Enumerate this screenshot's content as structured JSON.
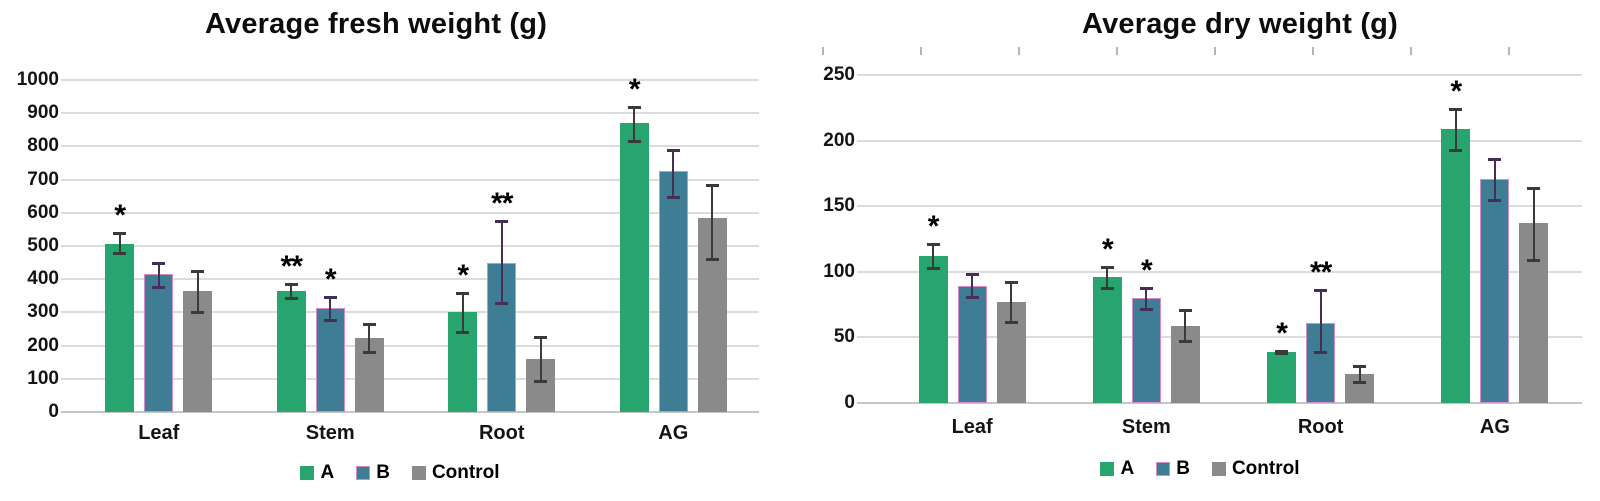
{
  "page": {
    "background": "#ffffff"
  },
  "chart_data": [
    {
      "type": "bar",
      "title": "Average fresh weight (g)",
      "categories": [
        "Leaf",
        "Stem",
        "Root",
        "AG"
      ],
      "series": [
        {
          "name": "A",
          "color": "#28a56e",
          "values": [
            505,
            365,
            300,
            870
          ],
          "err_lo": [
            478,
            343,
            242,
            815
          ],
          "err_hi": [
            538,
            386,
            357,
            918
          ],
          "sig": [
            "*",
            "**",
            "*",
            "*"
          ]
        },
        {
          "name": "B",
          "color": "#3e7d94",
          "outline": "#d28cc9",
          "err_color": "#453054",
          "values": [
            415,
            312,
            448,
            725
          ],
          "err_lo": [
            377,
            278,
            327,
            648
          ],
          "err_hi": [
            450,
            347,
            575,
            790
          ],
          "sig": [
            "",
            "*",
            "**",
            ""
          ]
        },
        {
          "name": "Control",
          "color": "#8a8a8a",
          "values": [
            364,
            224,
            159,
            583
          ],
          "err_lo": [
            302,
            182,
            92,
            460
          ],
          "err_hi": [
            426,
            265,
            227,
            684
          ],
          "sig": [
            "",
            "",
            "",
            ""
          ]
        }
      ],
      "ylim": [
        0,
        1000
      ],
      "yticks": [
        0,
        100,
        200,
        300,
        400,
        500,
        600,
        700,
        800,
        900,
        1000
      ],
      "grid": true,
      "legend_position": "bottom",
      "legend_labels": [
        "A",
        "B",
        "Control"
      ],
      "top_ticks": false
    },
    {
      "type": "bar",
      "title": "Average dry weight (g)",
      "categories": [
        "Leaf",
        "Stem",
        "Root",
        "AG"
      ],
      "series": [
        {
          "name": "A",
          "color": "#28a56e",
          "values": [
            112,
            96,
            39,
            209
          ],
          "err_lo": [
            103,
            88,
            38,
            193
          ],
          "err_hi": [
            121,
            104,
            40,
            224
          ],
          "sig": [
            "*",
            "*",
            "*",
            "*"
          ]
        },
        {
          "name": "B",
          "color": "#3e7d94",
          "outline": "#d28cc9",
          "err_color": "#453054",
          "values": [
            89,
            80,
            61,
            171
          ],
          "err_lo": [
            81,
            72,
            39,
            155
          ],
          "err_hi": [
            98,
            88,
            86,
            186
          ],
          "sig": [
            "",
            "*",
            "**",
            ""
          ]
        },
        {
          "name": "Control",
          "color": "#8a8a8a",
          "values": [
            77,
            59,
            22,
            137
          ],
          "err_lo": [
            62,
            47,
            16,
            109
          ],
          "err_hi": [
            92,
            71,
            28,
            164
          ],
          "sig": [
            "",
            "",
            "",
            ""
          ]
        }
      ],
      "ylim": [
        0,
        250
      ],
      "yticks": [
        0,
        50,
        100,
        150,
        200,
        250
      ],
      "grid": true,
      "legend_position": "bottom",
      "legend_labels": [
        "A",
        "B",
        "Control"
      ],
      "top_ticks": true
    }
  ],
  "colors": {
    "series_a": "#28a56e",
    "series_b": "#3e7d94",
    "series_b_outline": "#d28cc9",
    "series_control": "#8a8a8a",
    "error_bar": "#3a3a3a",
    "error_bar_b": "#453054",
    "gridline": "#dcdcdc",
    "axis_line": "#c6c6c6",
    "top_tick": "#b4b4b4",
    "text": "#0d0d0d"
  }
}
